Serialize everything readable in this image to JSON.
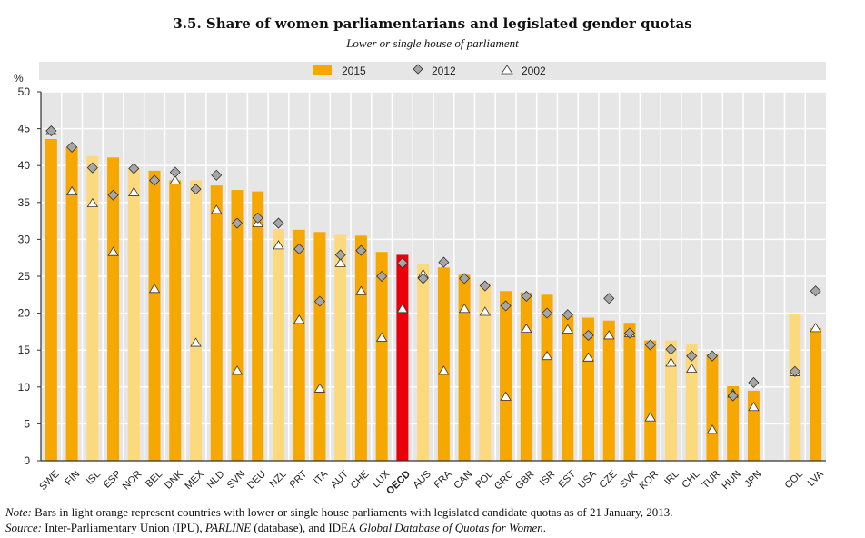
{
  "title": "3.5.  Share of women parliamentarians and legislated gender quotas",
  "subtitle": "Lower or single house of parliament",
  "notes": {
    "note_label": "Note:",
    "note_text": " Bars in light orange represent countries with lower or single house parliaments with legislated candidate quotas as of 21 January, 2013.",
    "source_label": "Source:",
    "source_text_1": " Inter-Parliamentary Union (IPU), ",
    "source_italic_1": "PARLINE",
    "source_text_2": " (database), and IDEA ",
    "source_italic_2": "Global Database of Quotas for Women",
    "source_text_3": "."
  },
  "colors": {
    "bar": "#f7a800",
    "bar_quota": "#fdd97e",
    "oecd": "#e8000b",
    "diamond": "#a6a6a6",
    "triangle": "#ffffff",
    "plot_bg": "#e6e6e7"
  },
  "chart_data": {
    "type": "bar",
    "ylabel": "%",
    "ylim": [
      0,
      50
    ],
    "yticks": [
      0,
      5,
      10,
      15,
      20,
      25,
      30,
      35,
      40,
      45,
      50
    ],
    "grid": true,
    "legend_placement": "top",
    "categories": [
      "SWE",
      "FIN",
      "ISL",
      "ESP",
      "NOR",
      "BEL",
      "DNK",
      "MEX",
      "NLD",
      "SVN",
      "DEU",
      "NZL",
      "PRT",
      "ITA",
      "AUT",
      "CHE",
      "LUX",
      "OECD",
      "AUS",
      "FRA",
      "CAN",
      "POL",
      "GRC",
      "GBR",
      "ISR",
      "EST",
      "USA",
      "CZE",
      "SVK",
      "KOR",
      "IRL",
      "CHL",
      "TUR",
      "HUN",
      "JPN",
      "",
      "COL",
      "LVA"
    ],
    "quota_countries": [
      "ISL",
      "NOR",
      "MEX",
      "NZL",
      "AUT",
      "AUS",
      "POL",
      "IRL",
      "CHL",
      "COL"
    ],
    "highlight": "OECD",
    "series": [
      {
        "name": "2015",
        "marker": "bar",
        "values": [
          43.6,
          42.5,
          41.3,
          41.1,
          39.6,
          39.3,
          38.0,
          38.0,
          37.3,
          36.7,
          36.5,
          31.4,
          31.3,
          31.0,
          30.6,
          30.5,
          28.3,
          27.9,
          26.7,
          26.2,
          25.2,
          24.1,
          23.0,
          22.8,
          22.5,
          19.8,
          19.4,
          19.0,
          18.7,
          16.3,
          16.3,
          15.8,
          14.4,
          10.1,
          9.5,
          null,
          19.9,
          18.0
        ]
      },
      {
        "name": "2012",
        "marker": "diamond",
        "values": [
          44.7,
          42.5,
          39.7,
          36.0,
          39.6,
          38.0,
          39.1,
          36.8,
          38.7,
          32.2,
          32.9,
          32.2,
          28.7,
          21.6,
          27.9,
          28.5,
          25.0,
          26.8,
          24.7,
          26.9,
          24.7,
          23.7,
          21.0,
          22.3,
          20.0,
          19.8,
          17.0,
          22.0,
          17.3,
          15.7,
          15.1,
          14.2,
          14.2,
          8.8,
          10.6,
          null,
          12.1,
          23.0
        ]
      },
      {
        "name": "2002",
        "marker": "triangle",
        "values": [
          44.7,
          36.5,
          34.9,
          28.3,
          36.4,
          23.3,
          38.0,
          16.0,
          34.0,
          12.2,
          32.2,
          29.2,
          19.1,
          9.8,
          26.8,
          23.0,
          16.7,
          20.6,
          25.3,
          12.2,
          20.6,
          20.2,
          8.7,
          17.9,
          14.2,
          17.8,
          14.0,
          17.0,
          17.3,
          5.9,
          13.3,
          12.5,
          4.2,
          9.1,
          7.3,
          null,
          12.0,
          18.0
        ]
      }
    ]
  }
}
